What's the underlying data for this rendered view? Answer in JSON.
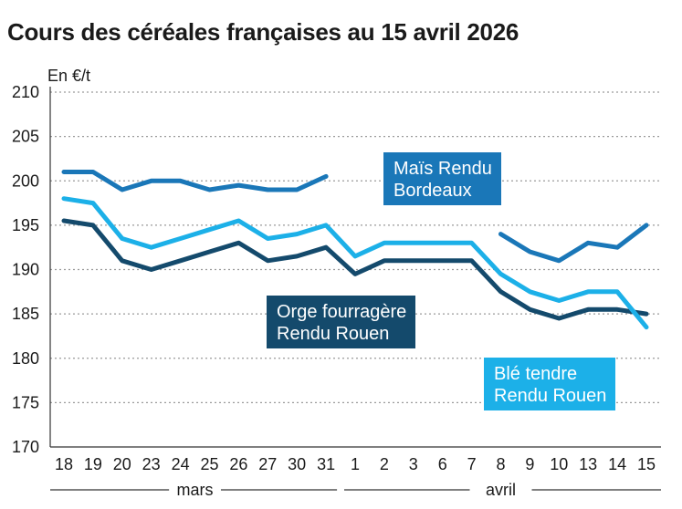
{
  "chart_data": {
    "type": "line",
    "title": "Cours des céréales françaises au 15 avril 2026",
    "ylabel": "En €/t",
    "xlabel": "",
    "ylim": [
      170,
      210
    ],
    "yticks": [
      "170",
      "175",
      "180",
      "185",
      "190",
      "195",
      "200",
      "205",
      "210"
    ],
    "categories": [
      "18",
      "19",
      "20",
      "23",
      "24",
      "25",
      "26",
      "27",
      "30",
      "31",
      "1",
      "2",
      "3",
      "6",
      "7",
      "8",
      "9",
      "10",
      "13",
      "14",
      "15"
    ],
    "months": [
      {
        "label": "mars",
        "from": "18",
        "to": "31"
      },
      {
        "label": "avril",
        "from": "1",
        "to": "15"
      }
    ],
    "series": [
      {
        "name": "Maïs Rendu Bordeaux",
        "label_lines": [
          "Maïs Rendu",
          "Bordeaux"
        ],
        "color": "#1a77b8",
        "values": [
          201,
          201,
          199,
          200,
          200,
          199,
          199.5,
          199,
          199,
          200.5,
          null,
          null,
          null,
          null,
          null,
          194,
          192,
          191,
          193,
          192.5,
          195
        ]
      },
      {
        "name": "Blé tendre Rendu Rouen",
        "label_lines": [
          "Blé tendre",
          "Rendu Rouen"
        ],
        "color": "#1cb0e8",
        "values": [
          198,
          197.5,
          193.5,
          192.5,
          193.5,
          194.5,
          195.5,
          193.5,
          194,
          195,
          191.5,
          193,
          193,
          193,
          193,
          189.5,
          187.5,
          186.5,
          187.5,
          187.5,
          183.5
        ]
      },
      {
        "name": "Orge fourragère Rendu Rouen",
        "label_lines": [
          "Orge fourragère",
          "Rendu Rouen"
        ],
        "color": "#144a6c",
        "values": [
          195.5,
          195,
          191,
          190,
          191,
          192,
          193,
          191,
          191.5,
          192.5,
          189.5,
          191,
          191,
          191,
          191,
          187.5,
          185.5,
          184.5,
          185.5,
          185.5,
          185
        ]
      }
    ],
    "grid": true,
    "legend": "inline labels"
  }
}
